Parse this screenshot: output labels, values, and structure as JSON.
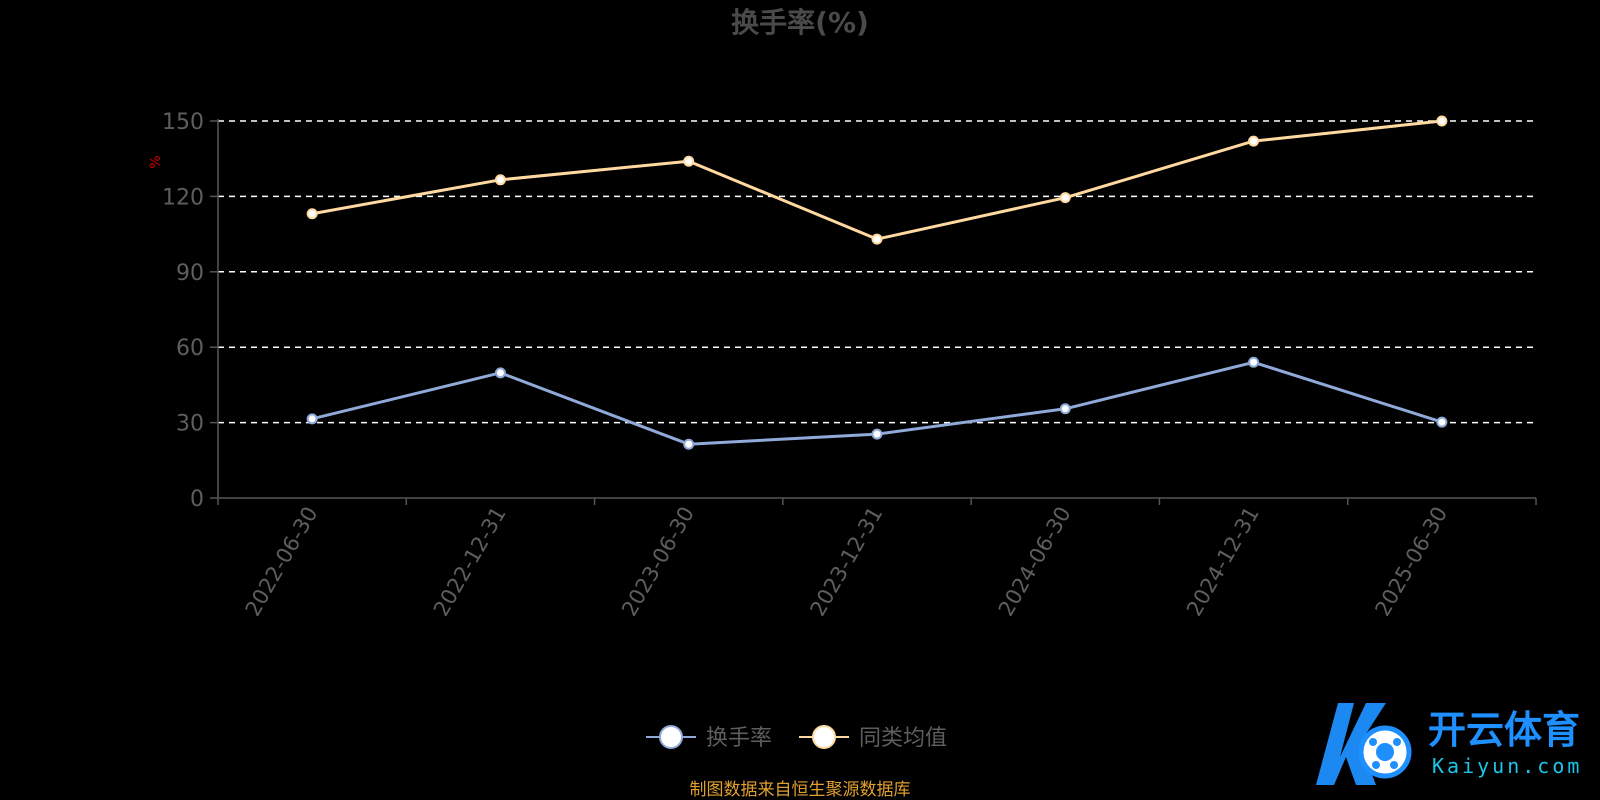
{
  "chart_data": {
    "type": "line",
    "title": "换手率(%)",
    "ylabel": "%",
    "xlabel": "",
    "categories": [
      "2022-06-30",
      "2022-12-31",
      "2023-06-30",
      "2023-12-31",
      "2024-06-30",
      "2024-12-31",
      "2025-06-30"
    ],
    "ylim": [
      0,
      150
    ],
    "yticks": [
      0,
      30,
      60,
      90,
      120,
      150
    ],
    "grid": "horizontal-dashed",
    "legend_position": "bottom-center",
    "series": [
      {
        "name": "换手率",
        "color": "#8fa9d8",
        "values": [
          31.5,
          49.8,
          21.4,
          25.4,
          35.5,
          54.0,
          30.2
        ]
      },
      {
        "name": "同类均值",
        "color": "#ffd9a0",
        "values": [
          113.1,
          126.6,
          134.0,
          103.0,
          119.5,
          142.0,
          150.0
        ]
      }
    ],
    "source_note": "制图数据来自恒生聚源数据库"
  },
  "watermark": {
    "brand_cn": "开云体育",
    "brand_en": "Kaiyun.com",
    "colors": {
      "primary": "#1e90ff",
      "secondary": "#1cc4e8"
    }
  },
  "colors": {
    "background": "#000000",
    "axis": "#555555",
    "tick_text": "#5e5e5e",
    "grid": "#ffffff",
    "ylabel": "#cc0000",
    "source": "#e0a030"
  }
}
